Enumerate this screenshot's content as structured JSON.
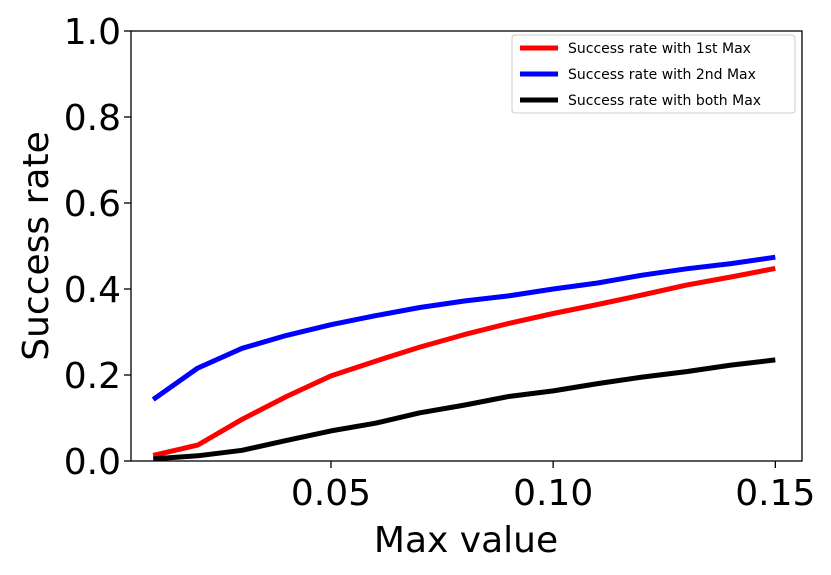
{
  "chart_data": {
    "type": "line",
    "xlabel": "Max value",
    "ylabel": "Success rate",
    "xlim": [
      0.005,
      0.156
    ],
    "ylim": [
      0.0,
      1.0
    ],
    "xticks": [
      0.05,
      0.1,
      0.15
    ],
    "xtick_labels": [
      "0.05",
      "0.10",
      "0.15"
    ],
    "yticks": [
      0.0,
      0.2,
      0.4,
      0.6,
      0.8,
      1.0
    ],
    "ytick_labels": [
      "0.0",
      "0.2",
      "0.4",
      "0.6",
      "0.8",
      "1.0"
    ],
    "grid": false,
    "legend_position": "top-right",
    "x": [
      0.01,
      0.02,
      0.03,
      0.04,
      0.05,
      0.06,
      0.07,
      0.08,
      0.09,
      0.1,
      0.11,
      0.12,
      0.13,
      0.14,
      0.15
    ],
    "series": [
      {
        "name": "Success rate with 1st Max",
        "color": "#ff0000",
        "values": [
          0.013,
          0.037,
          0.097,
          0.15,
          0.198,
          0.232,
          0.265,
          0.294,
          0.32,
          0.343,
          0.364,
          0.386,
          0.409,
          0.428,
          0.448
        ]
      },
      {
        "name": "Success rate with 2nd Max",
        "color": "#0000ff",
        "values": [
          0.143,
          0.216,
          0.262,
          0.292,
          0.317,
          0.338,
          0.357,
          0.372,
          0.384,
          0.4,
          0.414,
          0.432,
          0.447,
          0.459,
          0.474
        ]
      },
      {
        "name": "Success rate with both Max",
        "color": "#000000",
        "values": [
          0.005,
          0.012,
          0.025,
          0.048,
          0.07,
          0.088,
          0.112,
          0.13,
          0.15,
          0.163,
          0.18,
          0.195,
          0.208,
          0.223,
          0.235
        ]
      }
    ]
  }
}
